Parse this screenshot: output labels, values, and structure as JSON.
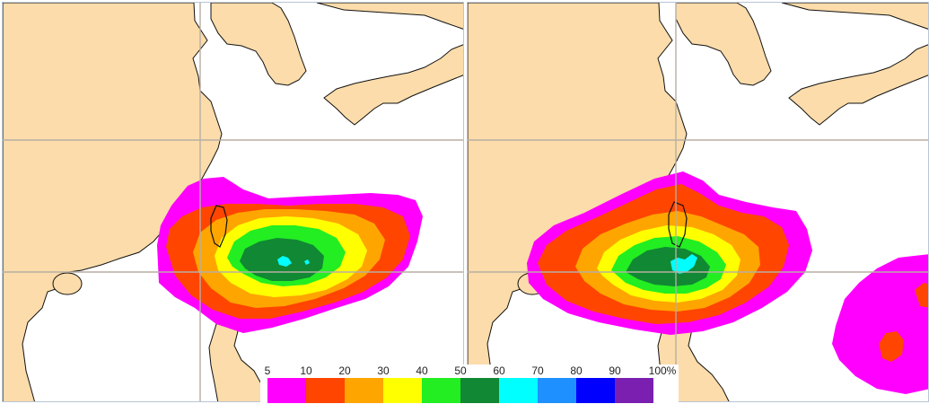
{
  "legend": {
    "ticks": [
      "5",
      "10",
      "20",
      "30",
      "40",
      "50",
      "60",
      "70",
      "80",
      "90",
      "100%"
    ],
    "colors": [
      "#ff00ff",
      "#ff4500",
      "#ffa500",
      "#ffff00",
      "#22ee22",
      "#118833",
      "#00ffff",
      "#1e90ff",
      "#0000ff",
      "#7b1fb0"
    ]
  },
  "map_colors": {
    "land": "#fbdcaa",
    "sea": "#ffffff",
    "coast": "#111111",
    "grid": "#b7aea4"
  },
  "maps": [
    {
      "id": "left-map",
      "core_color": "#00ffff"
    },
    {
      "id": "right-map",
      "core_color": "#00ffff",
      "secondary_blob": true
    }
  ]
}
